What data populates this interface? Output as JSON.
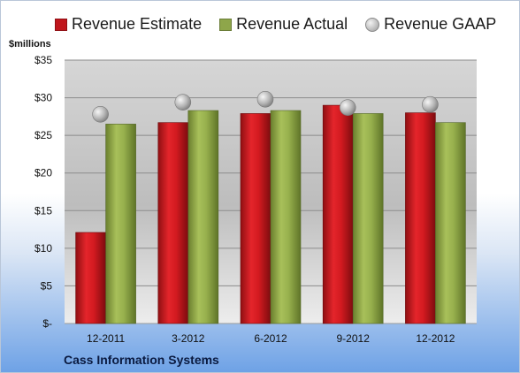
{
  "chart_data": {
    "type": "bar",
    "title": "",
    "unit_label": "$millions",
    "company": "Cass Information Systems",
    "categories": [
      "12-2011",
      "3-2012",
      "6-2012",
      "9-2012",
      "12-2012"
    ],
    "ylim": [
      0,
      35
    ],
    "yticks": [
      0,
      5,
      10,
      15,
      20,
      25,
      30,
      35
    ],
    "ytick_labels": [
      "$-",
      "$5",
      "$10",
      "$15",
      "$20",
      "$25",
      "$30",
      "$35"
    ],
    "grid": true,
    "legend_position": "top",
    "series": [
      {
        "name": "Revenue Estimate",
        "kind": "bar",
        "color": "#c0161c",
        "values": [
          12.1,
          26.7,
          27.9,
          29.0,
          28.0
        ]
      },
      {
        "name": "Revenue Actual",
        "kind": "bar",
        "color": "#8ea64a",
        "values": [
          26.5,
          28.3,
          28.3,
          27.9,
          26.7
        ]
      },
      {
        "name": "Revenue GAAP",
        "kind": "marker",
        "color": "#b8b8b8",
        "values": [
          27.8,
          29.4,
          29.8,
          28.7,
          29.1
        ]
      }
    ]
  }
}
